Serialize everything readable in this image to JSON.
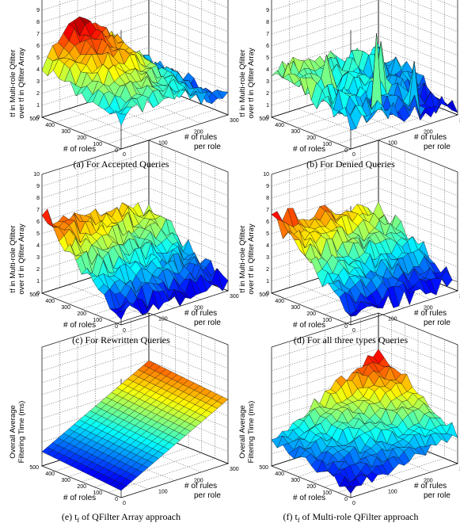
{
  "figure": {
    "panels": [
      {
        "id": "a",
        "caption": "(a) For Accepted Queries",
        "zlabel_lines": [
          "t",
          "f",
          " in Multi-role Qfilter",
          "over t",
          "f",
          " in Qfilter Array"
        ],
        "zlabel_line1": "tf in Multi-role Qfilter",
        "zlabel_line2": "over tf in Qfilter Array",
        "zticks": [
          "0",
          "1",
          "2",
          "3",
          "4",
          "5",
          "6",
          "7",
          "8",
          "9",
          "10"
        ],
        "roles_ticks": [
          "500",
          "400",
          "300",
          "200",
          "100",
          "0"
        ],
        "rules_ticks": [
          "0",
          "100",
          "200",
          "300"
        ],
        "roles_label": "# of roles",
        "rules_label_line1": "# of rules",
        "rules_label_line2": "per role"
      },
      {
        "id": "b",
        "caption": "(b) For Denied Queries",
        "zlabel_line1": "tf in Multi-role Qfilter",
        "zlabel_line2": "over tf in Qfilter Array",
        "zticks": [
          "0",
          "1",
          "2",
          "3",
          "4",
          "5",
          "6",
          "7",
          "8",
          "9",
          "10"
        ],
        "roles_ticks": [
          "500",
          "400",
          "300",
          "200",
          "100",
          "0"
        ],
        "rules_ticks": [
          "0",
          "100",
          "200",
          "300"
        ],
        "roles_label": "# of roles",
        "rules_label_line1": "# of rules",
        "rules_label_line2": "per role"
      },
      {
        "id": "c",
        "caption": "(c) For Rewritten Queries",
        "zlabel_line1": "tf in Multi-role Qfilter",
        "zlabel_line2": "over tf in Qfilter Array",
        "zticks": [
          "0",
          "1",
          "2",
          "3",
          "4",
          "5",
          "6",
          "7",
          "8",
          "9",
          "10"
        ],
        "roles_ticks": [
          "500",
          "400",
          "300",
          "200",
          "100",
          "0"
        ],
        "rules_ticks": [
          "0",
          "100",
          "200",
          "300"
        ],
        "roles_label": "# of roles",
        "rules_label_line1": "# of rules",
        "rules_label_line2": "per role"
      },
      {
        "id": "d",
        "caption": "(d) For all three types Queries",
        "zlabel_line1": "tf in Multi-role Qfilter",
        "zlabel_line2": "over tf in Qfilter Array",
        "zticks": [
          "0",
          "1",
          "2",
          "3",
          "4",
          "5",
          "6",
          "7",
          "8",
          "9",
          "10"
        ],
        "roles_ticks": [
          "500",
          "400",
          "300",
          "200",
          "100",
          "0"
        ],
        "rules_ticks": [
          "0",
          "100",
          "200",
          "300"
        ],
        "roles_label": "# of roles",
        "rules_label_line1": "# of rules",
        "rules_label_line2": "per role"
      },
      {
        "id": "e",
        "caption_pre": "(e) t",
        "caption_sub": "f",
        "caption_post": " of QFilter Array approach",
        "zlabel_line1": "Overall Average",
        "zlabel_line2": "Filtering Time (ms)",
        "zticks": [],
        "roles_ticks": [
          "500",
          "400",
          "300",
          "200",
          "100",
          "0"
        ],
        "rules_ticks": [
          "0",
          "100",
          "200",
          "300"
        ],
        "roles_label": "# of roles",
        "rules_label_line1": "# of rules",
        "rules_label_line2": "per role"
      },
      {
        "id": "f",
        "caption_pre": "(f) t",
        "caption_sub": "f",
        "caption_post": " of Multi-role QFilter approach",
        "zlabel_line1": "Overall Average",
        "zlabel_line2": "Filtering Time (ms)",
        "zticks": [],
        "roles_ticks": [
          "500",
          "400",
          "300",
          "200",
          "100",
          "0"
        ],
        "rules_ticks": [
          "0",
          "100",
          "200",
          "300"
        ],
        "roles_label": "# of roles",
        "rules_label_line1": "# of rules",
        "rules_label_line2": "per role"
      }
    ]
  },
  "chart_data": [
    {
      "panel": "a",
      "type": "surface",
      "x_name": "# of rules per role",
      "x_range": [
        0,
        300
      ],
      "y_name": "# of roles",
      "y_range": [
        0,
        500
      ],
      "z_name": "tf in Multi-role Qfilter over tf in Qfilter Array",
      "z_range": [
        0,
        10
      ],
      "shape": "ridge peaking ~6 at mid rules, falling to ~1 at low roles",
      "z_peak": 6.5,
      "z_min": 1.0,
      "colormap": "jet"
    },
    {
      "panel": "b",
      "type": "surface",
      "x_name": "# of rules per role",
      "x_range": [
        0,
        300
      ],
      "y_name": "# of roles",
      "y_range": [
        0,
        500
      ],
      "z_name": "tf in Multi-role Qfilter over tf in Qfilter Array",
      "z_range": [
        0,
        10
      ],
      "shape": "mostly low (~2-4) with isolated spikes up to ~8",
      "z_peak": 8.0,
      "z_min": 0.5,
      "colormap": "jet"
    },
    {
      "panel": "c",
      "type": "surface",
      "x_name": "# of rules per role",
      "x_range": [
        0,
        300
      ],
      "y_name": "# of roles",
      "y_range": [
        0,
        500
      ],
      "z_name": "tf in Multi-role Qfilter over tf in Qfilter Array",
      "z_range": [
        0,
        10
      ],
      "shape": "high ~6 at high roles, decreasing to ~1 at low roles",
      "z_peak": 6.5,
      "z_min": 0.5,
      "colormap": "jet"
    },
    {
      "panel": "d",
      "type": "surface",
      "x_name": "# of rules per role",
      "x_range": [
        0,
        300
      ],
      "y_name": "# of roles",
      "y_range": [
        0,
        500
      ],
      "z_name": "tf in Multi-role Qfilter over tf in Qfilter Array",
      "z_range": [
        0,
        10
      ],
      "shape": "high ~6 at high roles, decreasing to ~1 at low roles",
      "z_peak": 6.5,
      "z_min": 0.5,
      "colormap": "jet"
    },
    {
      "panel": "e",
      "type": "surface",
      "x_name": "# of rules per role",
      "x_range": [
        0,
        300
      ],
      "y_name": "# of roles",
      "y_range": [
        0,
        500
      ],
      "z_name": "Overall Average Filtering Time (ms)",
      "shape": "smooth plane increasing with rules per role",
      "colormap": "jet"
    },
    {
      "panel": "f",
      "type": "surface",
      "x_name": "# of rules per role",
      "x_range": [
        0,
        300
      ],
      "y_name": "# of roles",
      "y_range": [
        0,
        500
      ],
      "z_name": "Overall Average Filtering Time (ms)",
      "shape": "rises with rules per role and roles, noisy top",
      "colormap": "jet"
    }
  ]
}
